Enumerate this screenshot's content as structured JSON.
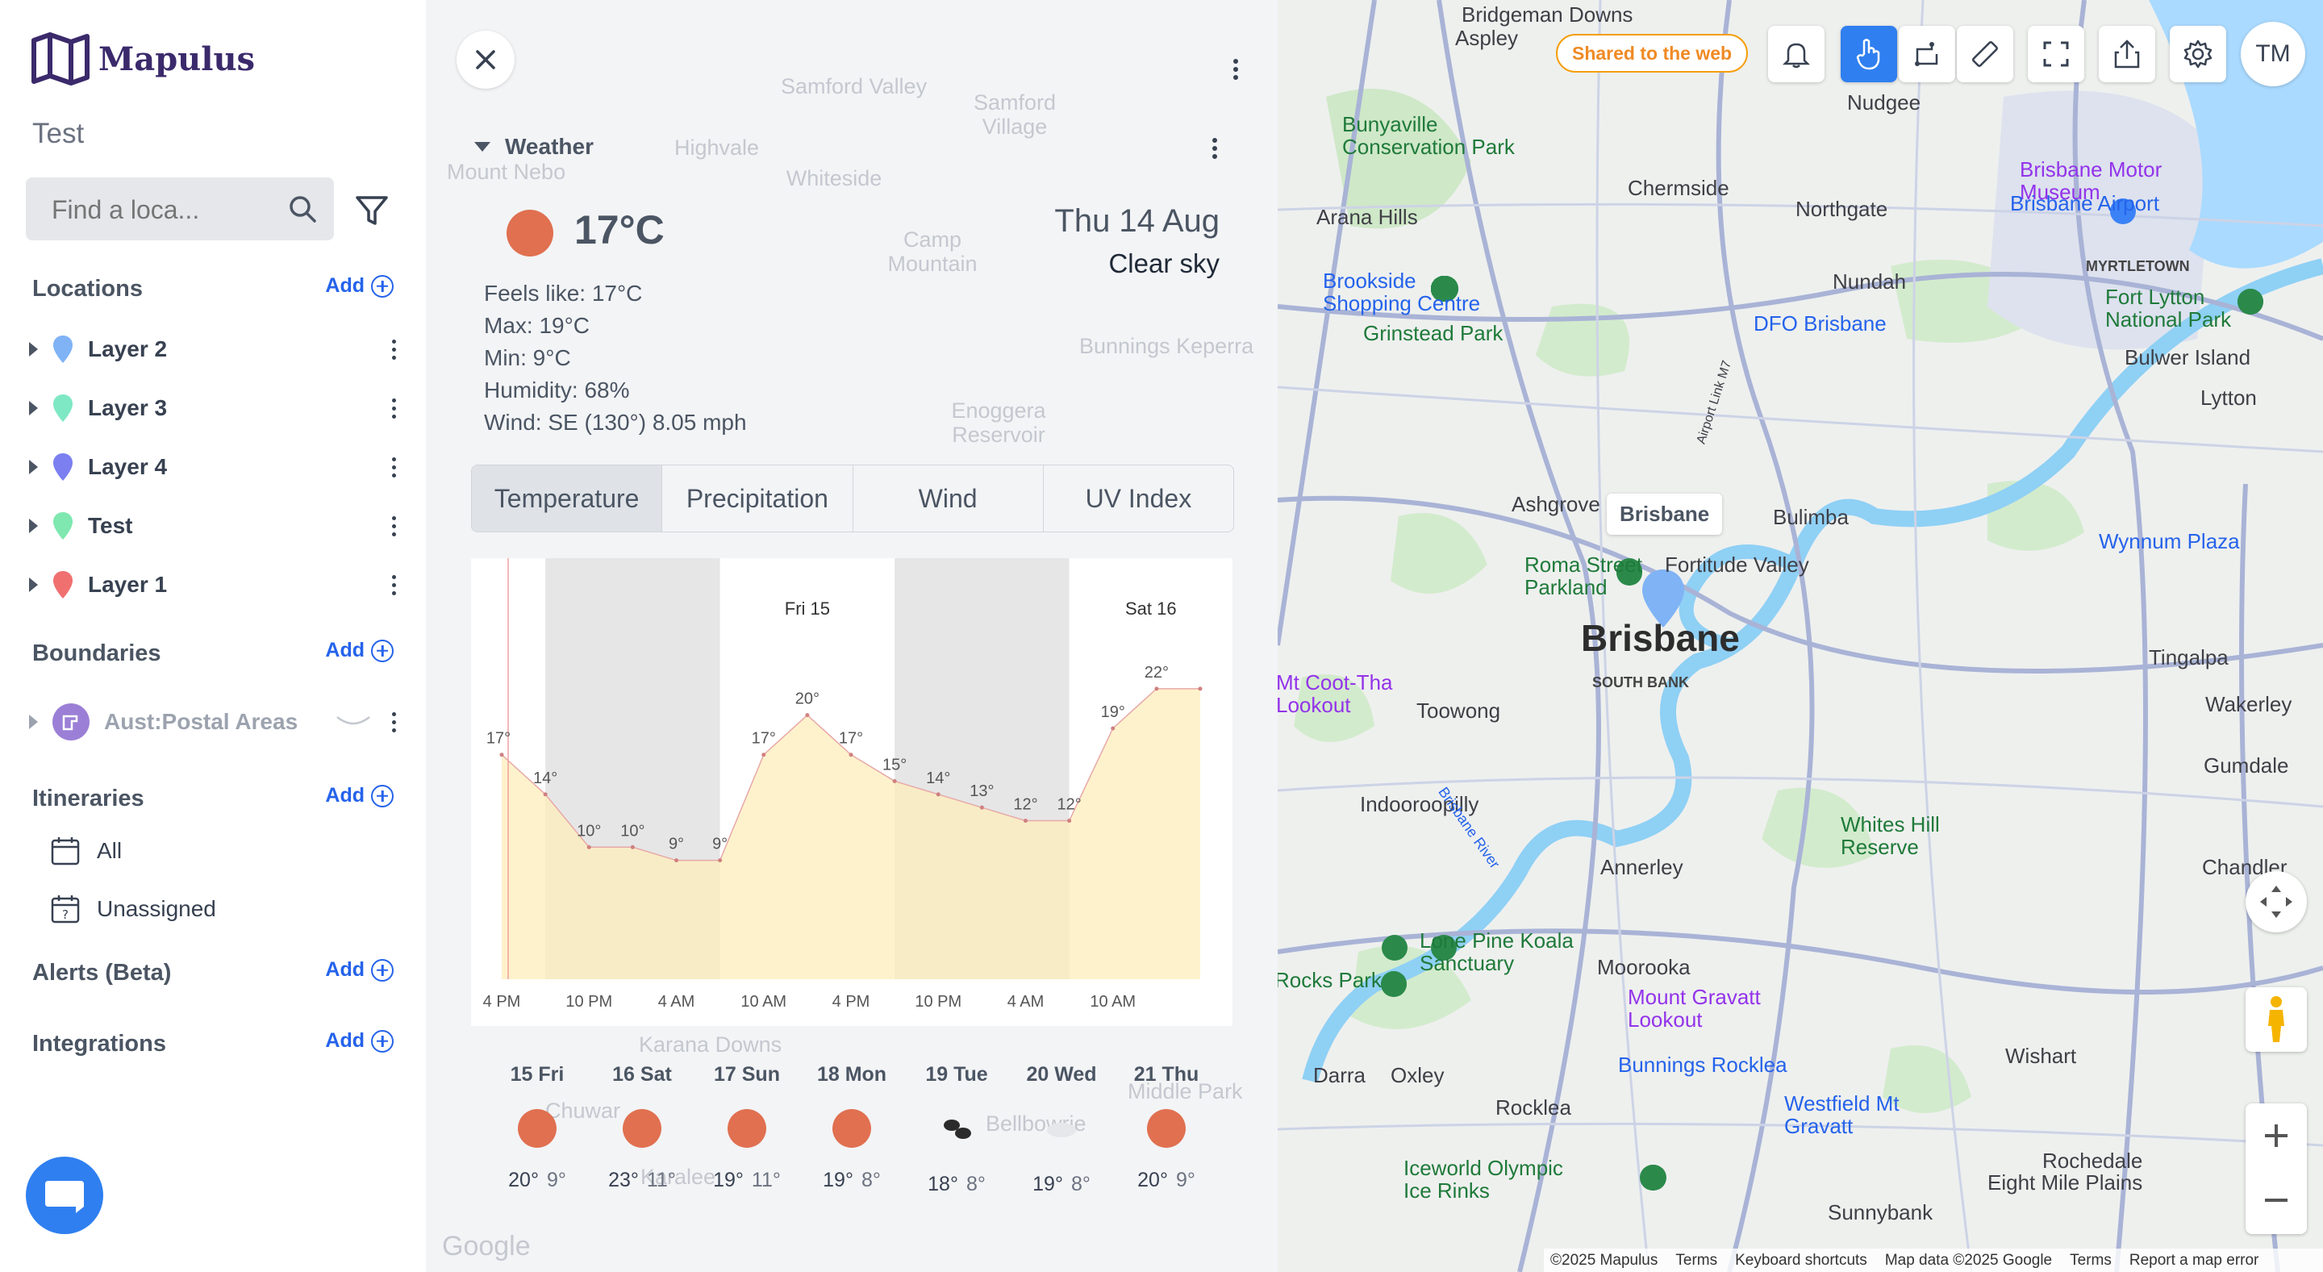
{
  "sidebar": {
    "logo_text": "Mapulus",
    "project_title": "Test",
    "search_placeholder": "Find a loca...",
    "add_label": "Add",
    "locations_title": "Locations",
    "layers": [
      {
        "label": "Layer 2",
        "color": "#7fb3f5"
      },
      {
        "label": "Layer 3",
        "color": "#7ee8c4"
      },
      {
        "label": "Layer 4",
        "color": "#7b7ff0"
      },
      {
        "label": "Test",
        "color": "#7ee8b0"
      },
      {
        "label": "Layer 1",
        "color": "#f07070"
      }
    ],
    "boundaries_title": "Boundaries",
    "boundary_item": "Aust:Postal Areas",
    "itineraries_title": "Itineraries",
    "itinerary_items": [
      "All",
      "Unassigned"
    ],
    "alerts_title": "Alerts (Beta)",
    "integrations_title": "Integrations"
  },
  "weather": {
    "section_title": "Weather",
    "temperature": "17°C",
    "date": "Thu 14 Aug",
    "condition": "Clear sky",
    "stats": [
      "Feels like: 17°C",
      "Max: 19°C",
      "Min: 9°C",
      "Humidity: 68%",
      "Wind: SE (130°) 8.05 mph"
    ],
    "tabs": [
      "Temperature",
      "Precipitation",
      "Wind",
      "UV Index"
    ],
    "active_tab": "Temperature",
    "background_places": [
      "Samford Valley",
      "Samford Village",
      "Highvale",
      "Mount Nebo",
      "Whiteside",
      "Camp Mountain",
      "Bunnings Keperra",
      "Enoggera Reservoir",
      "Karana Downs",
      "Chuwar",
      "Karalee",
      "Bellbowrie",
      "Middle Park",
      "Google"
    ],
    "daily": [
      {
        "day": "15 Fri",
        "high": "20°",
        "low": "9°",
        "icon": "sun"
      },
      {
        "day": "16 Sat",
        "high": "23°",
        "low": "11°",
        "icon": "sun"
      },
      {
        "day": "17 Sun",
        "high": "19°",
        "low": "11°",
        "icon": "sun"
      },
      {
        "day": "18 Mon",
        "high": "19°",
        "low": "8°",
        "icon": "sun"
      },
      {
        "day": "19 Tue",
        "high": "18°",
        "low": "8°",
        "icon": "cloud"
      },
      {
        "day": "20 Wed",
        "high": "19°",
        "low": "8°",
        "icon": "cloud"
      },
      {
        "day": "21 Thu",
        "high": "20°",
        "low": "9°",
        "icon": "sun"
      }
    ]
  },
  "chart_data": {
    "type": "area",
    "title": "",
    "xlabel": "",
    "ylabel": "",
    "x": [
      "4 PM",
      "7 PM",
      "10 PM",
      "1 AM",
      "4 AM",
      "7 AM",
      "10 AM",
      "1 PM",
      "4 PM",
      "7 PM",
      "10 PM",
      "1 AM",
      "4 AM",
      "7 AM",
      "10 AM",
      "1 PM",
      "4 PM"
    ],
    "x_tick_labels": [
      "4 PM",
      "10 PM",
      "4 AM",
      "10 AM",
      "4 PM",
      "10 PM",
      "4 AM",
      "10 AM"
    ],
    "day_labels": [
      "Fri 15",
      "Sat 16"
    ],
    "series": [
      {
        "values": [
          17,
          14,
          10,
          10,
          9,
          9,
          17,
          20,
          17,
          15,
          14,
          13,
          12,
          12,
          19,
          22,
          22
        ]
      }
    ],
    "data_labels": [
      "17°",
      "14°",
      "10°",
      "10°",
      "9°",
      "9°",
      "17°",
      "20°",
      "17°",
      "15°",
      "14°",
      "13°",
      "12°",
      "12°",
      "19°",
      "22°"
    ],
    "night_bands": [
      [
        "7 PM",
        "7 AM"
      ],
      [
        "7 PM",
        "7 AM"
      ]
    ],
    "ylim": [
      0,
      27
    ],
    "color": "#fdeebb",
    "line_color": "#e8a8a8"
  },
  "map": {
    "shared_badge": "Shared to the web",
    "avatar_initials": "TM",
    "callout": "Brisbane",
    "labels": [
      {
        "t": "Bridgeman Downs",
        "c": ""
      },
      {
        "t": "Aspley",
        "c": ""
      },
      {
        "t": "Nudgee",
        "c": ""
      },
      {
        "t": "Bunyaville Conservation Park",
        "c": "green"
      },
      {
        "t": "Brisbane Motor Museum",
        "c": "purple"
      },
      {
        "t": "Chermside",
        "c": ""
      },
      {
        "t": "Brisbane Airport",
        "c": "blue"
      },
      {
        "t": "Arana Hills",
        "c": ""
      },
      {
        "t": "Northgate",
        "c": ""
      },
      {
        "t": "Brookside Shopping Centre",
        "c": "blue"
      },
      {
        "t": "Nundah",
        "c": ""
      },
      {
        "t": "MYRTLETOWN",
        "c": "small"
      },
      {
        "t": "Fort Lytton National Park",
        "c": "green"
      },
      {
        "t": "Grinstead Park",
        "c": "green"
      },
      {
        "t": "DFO Brisbane",
        "c": "blue"
      },
      {
        "t": "Bulwer Island",
        "c": ""
      },
      {
        "t": "Lytton",
        "c": ""
      },
      {
        "t": "Ashgrove",
        "c": ""
      },
      {
        "t": "Bulimba",
        "c": ""
      },
      {
        "t": "Wynnum Plaza",
        "c": "blue"
      },
      {
        "t": "Roma Street Parkland",
        "c": "green"
      },
      {
        "t": "Fortitude Valley",
        "c": ""
      },
      {
        "t": "Brisbane",
        "c": "big"
      },
      {
        "t": "SOUTH BANK",
        "c": "small"
      },
      {
        "t": "Mt Coot-Tha Lookout",
        "c": "purple"
      },
      {
        "t": "Tingalpa",
        "c": ""
      },
      {
        "t": "Wakerley",
        "c": ""
      },
      {
        "t": "Toowong",
        "c": ""
      },
      {
        "t": "Gumdale",
        "c": ""
      },
      {
        "t": "Indooroopilly",
        "c": ""
      },
      {
        "t": "Whites Hill Reserve",
        "c": "green"
      },
      {
        "t": "Chandler",
        "c": ""
      },
      {
        "t": "Annerley",
        "c": ""
      },
      {
        "t": "Lone Pine Koala Sanctuary",
        "c": "green"
      },
      {
        "t": "Moorooka",
        "c": ""
      },
      {
        "t": "Mount Gravatt Lookout",
        "c": "purple"
      },
      {
        "t": "Rocks Park",
        "c": "green"
      },
      {
        "t": "Oxley",
        "c": ""
      },
      {
        "t": "Bunnings Rocklea",
        "c": "blue"
      },
      {
        "t": "Wishart",
        "c": ""
      },
      {
        "t": "Rocklea",
        "c": ""
      },
      {
        "t": "Westfield Mt Gravatt",
        "c": "blue"
      },
      {
        "t": "Darra",
        "c": ""
      },
      {
        "t": "Rochedale",
        "c": ""
      },
      {
        "t": "Iceworld Olympic Ice Rinks",
        "c": "green"
      },
      {
        "t": "Eight Mile Plains",
        "c": ""
      },
      {
        "t": "Sunnybank",
        "c": ""
      },
      {
        "t": "Brisbane River",
        "c": "blue"
      },
      {
        "t": "Airport Link M7",
        "c": ""
      }
    ],
    "footer": [
      "©2025 Mapulus",
      "Terms",
      "Keyboard shortcuts",
      "Map data ©2025 Google",
      "Terms",
      "Report a map error"
    ]
  }
}
